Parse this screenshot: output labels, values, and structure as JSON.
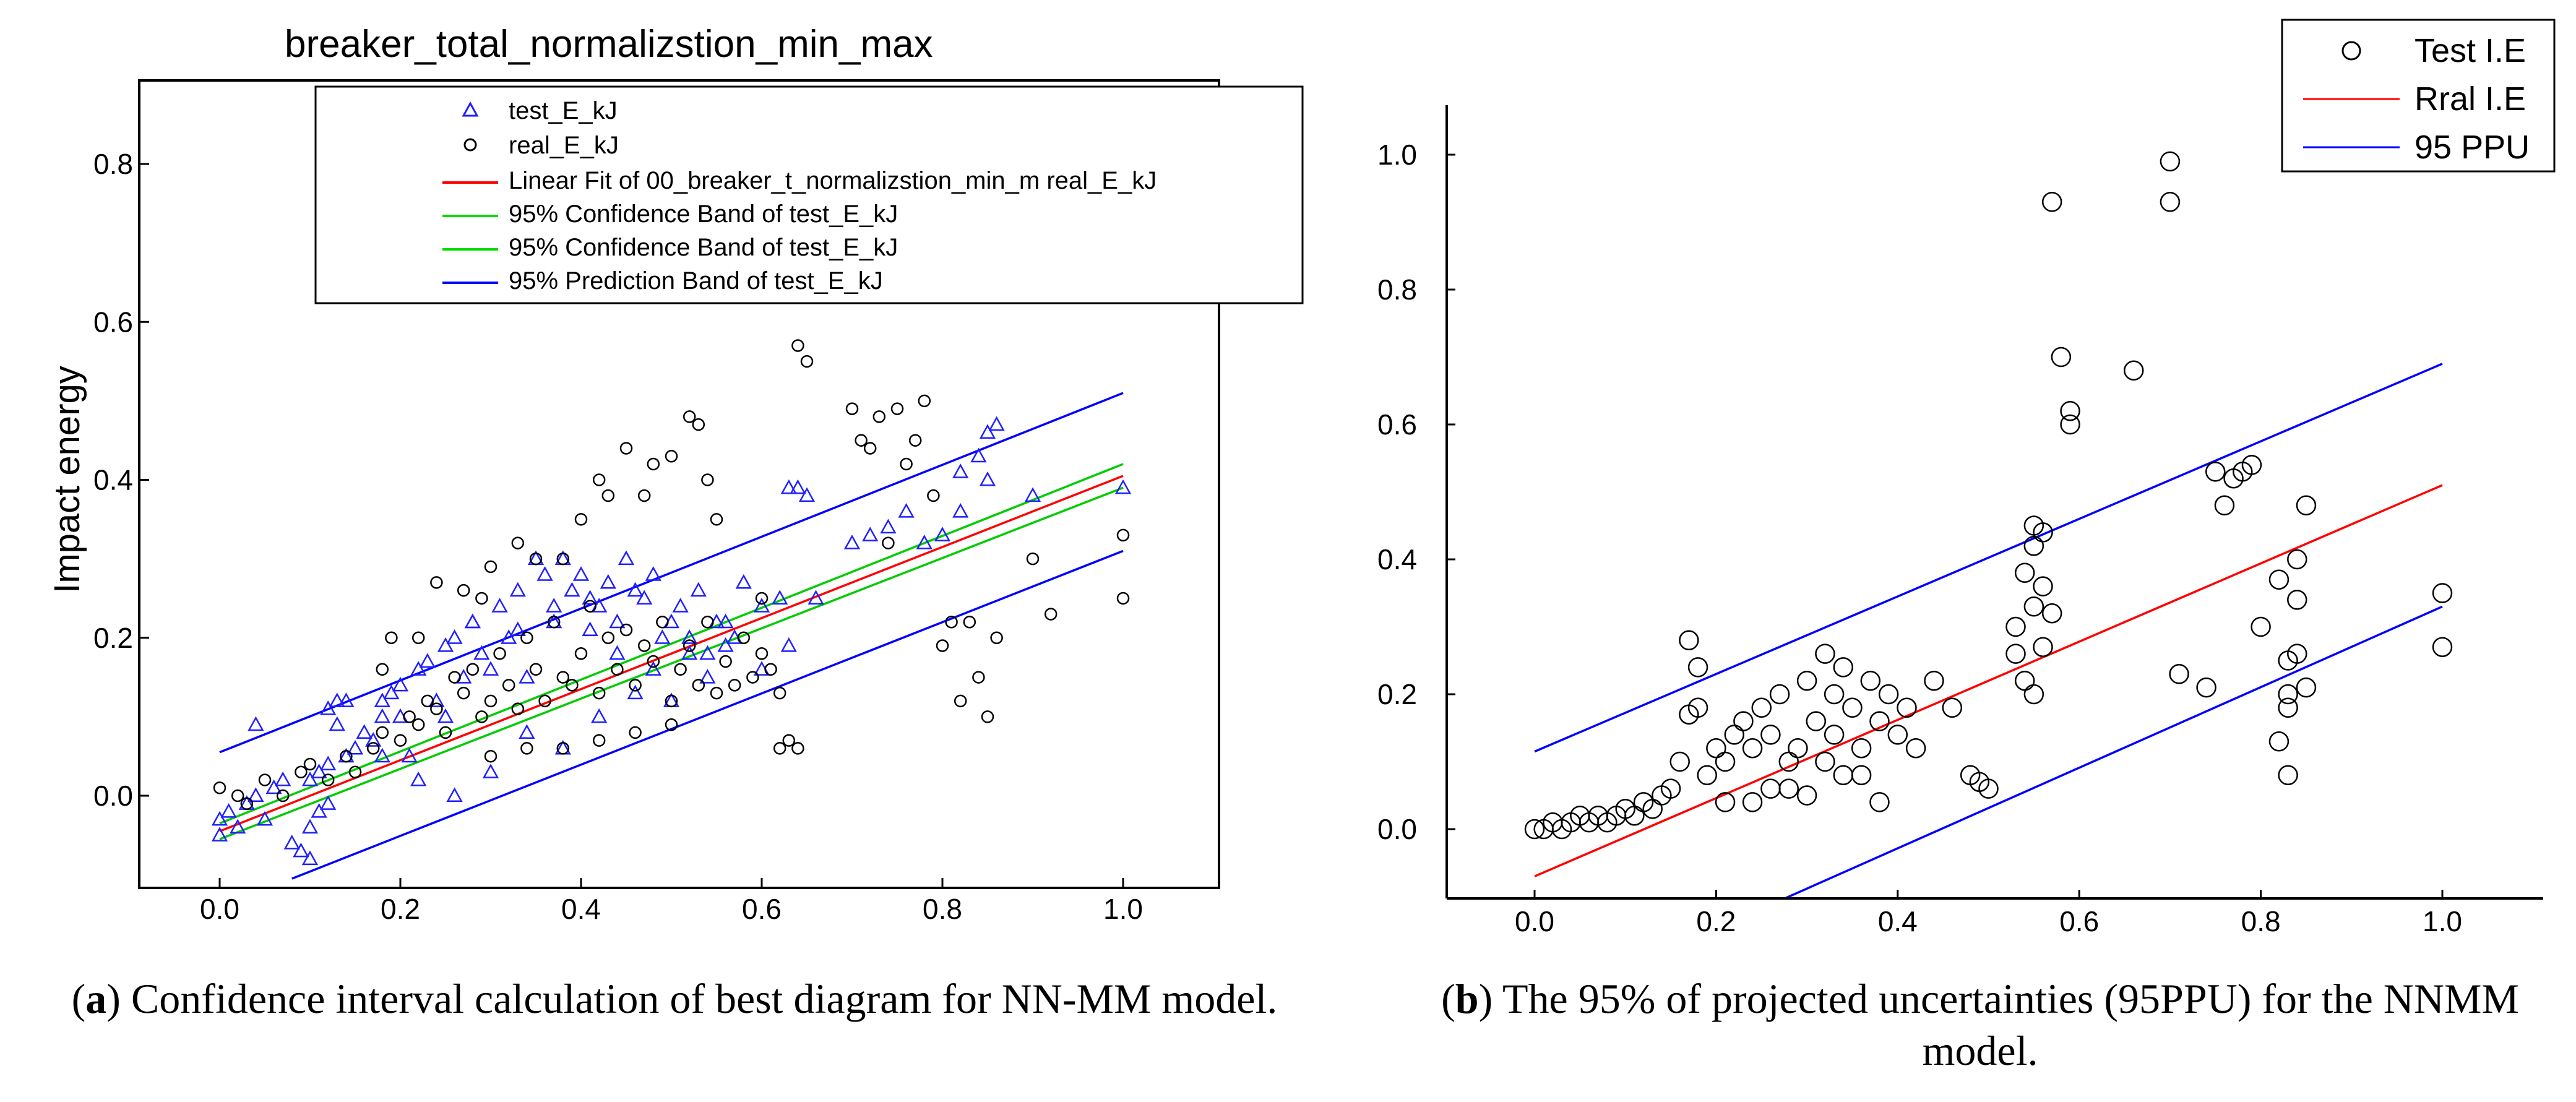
{
  "chart_data": [
    {
      "id": "a",
      "type": "scatter",
      "title": "breaker_total_normalizstion_min_max",
      "xlabel": "",
      "ylabel": "Impact energy",
      "xlim": [
        -0.1,
        1.1
      ],
      "ylim": [
        -0.1,
        0.9
      ],
      "x_ticks": [
        "0.0",
        "0.2",
        "0.4",
        "0.6",
        "0.8",
        "1.0"
      ],
      "y_ticks": [
        "0.0",
        "0.2",
        "0.4",
        "0.6",
        "0.8"
      ],
      "legend_position": "top-center",
      "legend": [
        {
          "label": "test_E_kJ",
          "marker": "triangle",
          "color": "#1f1fff"
        },
        {
          "label": "real_E_kJ",
          "marker": "circle",
          "color": "#000000"
        },
        {
          "label": "Linear Fit of 00_breaker_t_normalizstion_min_m real_E_kJ",
          "marker": "line",
          "color": "#ff0000"
        },
        {
          "label": "95% Confidence Band of test_E_kJ",
          "marker": "line",
          "color": "#00dd00"
        },
        {
          "label": "95% Confidence Band of test_E_kJ",
          "marker": "line",
          "color": "#00dd00"
        },
        {
          "label": "95% Prediction Band of test_E_kJ",
          "marker": "line",
          "color": "#0000ff"
        }
      ],
      "lines": [
        {
          "name": "Linear Fit",
          "color": "#ff0000",
          "x": [
            0.0,
            1.0
          ],
          "y": [
            -0.045,
            0.405
          ]
        },
        {
          "name": "95% Confidence Band upper",
          "color": "#00cc00",
          "x": [
            0.0,
            1.0
          ],
          "y": [
            -0.035,
            0.42
          ]
        },
        {
          "name": "95% Confidence Band lower",
          "color": "#00cc00",
          "x": [
            0.0,
            1.0
          ],
          "y": [
            -0.055,
            0.39
          ]
        },
        {
          "name": "95% Prediction Band upper",
          "color": "#0000ff",
          "x": [
            0.0,
            1.0
          ],
          "y": [
            0.055,
            0.51
          ]
        },
        {
          "name": "95% Prediction Band lower",
          "color": "#0000ff",
          "x": [
            0.08,
            1.0
          ],
          "y": [
            -0.105,
            0.31
          ]
        }
      ],
      "series": [
        {
          "name": "test_E_kJ",
          "marker": "triangle",
          "color": "#1f1fff",
          "x": [
            0.0,
            0.0,
            0.01,
            0.02,
            0.03,
            0.04,
            0.05,
            0.06,
            0.07,
            0.08,
            0.09,
            0.1,
            0.1,
            0.11,
            0.12,
            0.12,
            0.13,
            0.14,
            0.15,
            0.16,
            0.17,
            0.18,
            0.18,
            0.19,
            0.2,
            0.21,
            0.22,
            0.23,
            0.24,
            0.25,
            0.26,
            0.27,
            0.28,
            0.29,
            0.3,
            0.31,
            0.32,
            0.33,
            0.34,
            0.35,
            0.36,
            0.37,
            0.38,
            0.39,
            0.4,
            0.41,
            0.42,
            0.43,
            0.44,
            0.45,
            0.46,
            0.47,
            0.48,
            0.49,
            0.5,
            0.51,
            0.52,
            0.53,
            0.54,
            0.55,
            0.56,
            0.57,
            0.58,
            0.6,
            0.62,
            0.63,
            0.64,
            0.65,
            0.66,
            0.7,
            0.72,
            0.74,
            0.76,
            0.78,
            0.8,
            0.82,
            0.84,
            0.85,
            0.86,
            0.9,
            1.0,
            0.04,
            0.13,
            0.14,
            0.18,
            0.22,
            0.26,
            0.3,
            0.34,
            0.38,
            0.42,
            0.46,
            0.5,
            0.54,
            0.1,
            0.11,
            0.12,
            0.2,
            0.25,
            0.28,
            0.33,
            0.37,
            0.41,
            0.44,
            0.48,
            0.52,
            0.56,
            0.6,
            0.63,
            0.85,
            0.82
          ],
          "y": [
            -0.05,
            -0.03,
            -0.02,
            -0.04,
            -0.01,
            0.0,
            -0.03,
            0.01,
            0.02,
            -0.06,
            -0.07,
            -0.08,
            0.02,
            0.03,
            0.04,
            0.11,
            0.12,
            0.05,
            0.06,
            0.08,
            0.07,
            0.1,
            0.12,
            0.13,
            0.14,
            0.05,
            0.16,
            0.17,
            0.12,
            0.1,
            0.2,
            0.15,
            0.22,
            0.18,
            0.16,
            0.24,
            0.2,
            0.21,
            0.15,
            0.3,
            0.28,
            0.22,
            0.3,
            0.26,
            0.28,
            0.25,
            0.24,
            0.27,
            0.22,
            0.3,
            0.26,
            0.25,
            0.28,
            0.2,
            0.22,
            0.24,
            0.18,
            0.26,
            0.15,
            0.22,
            0.19,
            0.2,
            0.27,
            0.24,
            0.25,
            0.19,
            0.39,
            0.38,
            0.25,
            0.32,
            0.33,
            0.34,
            0.36,
            0.32,
            0.33,
            0.41,
            0.43,
            0.46,
            0.47,
            0.38,
            0.39,
            0.09,
            0.09,
            0.12,
            0.05,
            0.02,
            0.0,
            0.03,
            0.08,
            0.06,
            0.1,
            0.13,
            0.12,
            0.18,
            -0.04,
            -0.02,
            -0.01,
            0.1,
            0.19,
            0.22,
            0.26,
            0.24,
            0.21,
            0.18,
            0.16,
            0.2,
            0.22,
            0.16,
            0.39,
            0.4,
            0.36
          ]
        },
        {
          "name": "real_E_kJ",
          "marker": "circle",
          "color": "#000000",
          "x": [
            0.0,
            0.02,
            0.03,
            0.05,
            0.07,
            0.09,
            0.1,
            0.12,
            0.14,
            0.15,
            0.17,
            0.18,
            0.2,
            0.21,
            0.22,
            0.23,
            0.24,
            0.25,
            0.26,
            0.27,
            0.28,
            0.29,
            0.3,
            0.31,
            0.32,
            0.33,
            0.34,
            0.35,
            0.36,
            0.37,
            0.38,
            0.39,
            0.4,
            0.41,
            0.42,
            0.43,
            0.44,
            0.45,
            0.46,
            0.47,
            0.48,
            0.49,
            0.5,
            0.51,
            0.52,
            0.53,
            0.54,
            0.55,
            0.56,
            0.57,
            0.58,
            0.59,
            0.6,
            0.61,
            0.62,
            0.63,
            0.64,
            0.65,
            0.7,
            0.71,
            0.72,
            0.73,
            0.74,
            0.75,
            0.76,
            0.77,
            0.78,
            0.79,
            0.8,
            0.81,
            0.82,
            0.83,
            0.84,
            0.85,
            0.86,
            0.9,
            0.92,
            1.0,
            1.0,
            0.6,
            0.62,
            0.64,
            0.52,
            0.53,
            0.54,
            0.47,
            0.48,
            0.42,
            0.43,
            0.38,
            0.33,
            0.29,
            0.24,
            0.22,
            0.27,
            0.3,
            0.35,
            0.4,
            0.45,
            0.5,
            0.55,
            0.3,
            0.34,
            0.38,
            0.42,
            0.46,
            0.5,
            0.18,
            0.19
          ],
          "y": [
            0.01,
            0.0,
            -0.01,
            0.02,
            0.0,
            0.03,
            0.04,
            0.02,
            0.05,
            0.03,
            0.06,
            0.08,
            0.07,
            0.1,
            0.09,
            0.12,
            0.11,
            0.08,
            0.15,
            0.13,
            0.16,
            0.1,
            0.12,
            0.18,
            0.14,
            0.11,
            0.2,
            0.16,
            0.12,
            0.22,
            0.15,
            0.14,
            0.18,
            0.24,
            0.13,
            0.2,
            0.16,
            0.21,
            0.14,
            0.19,
            0.17,
            0.22,
            0.12,
            0.16,
            0.19,
            0.14,
            0.22,
            0.13,
            0.17,
            0.14,
            0.2,
            0.15,
            0.18,
            0.16,
            0.13,
            0.07,
            0.57,
            0.55,
            0.49,
            0.45,
            0.44,
            0.48,
            0.32,
            0.49,
            0.42,
            0.45,
            0.5,
            0.38,
            0.19,
            0.22,
            0.12,
            0.22,
            0.15,
            0.1,
            0.2,
            0.3,
            0.23,
            0.33,
            0.25,
            0.25,
            0.06,
            0.06,
            0.48,
            0.47,
            0.4,
            0.38,
            0.42,
            0.4,
            0.38,
            0.3,
            0.32,
            0.25,
            0.27,
            0.2,
            0.26,
            0.29,
            0.3,
            0.35,
            0.44,
            0.43,
            0.35,
            0.05,
            0.06,
            0.06,
            0.07,
            0.08,
            0.09,
            0.16,
            0.2
          ]
        }
      ]
    },
    {
      "id": "b",
      "type": "scatter",
      "title": "",
      "xlabel": "",
      "ylabel": "",
      "xlim": [
        -0.1,
        1.1
      ],
      "ylim": [
        -0.13,
        1.1
      ],
      "x_ticks": [
        "0.0",
        "0.2",
        "0.4",
        "0.6",
        "0.8",
        "1.0"
      ],
      "y_ticks": [
        "0.0",
        "0.2",
        "0.4",
        "0.6",
        "0.8",
        "1.0"
      ],
      "legend_position": "top-right",
      "legend": [
        {
          "label": "Test I.E",
          "marker": "circle",
          "color": "#000000"
        },
        {
          "label": "Rral I.E",
          "marker": "line",
          "color": "#ff0000"
        },
        {
          "label": "95 PPU",
          "marker": "line",
          "color": "#0000ff"
        }
      ],
      "lines": [
        {
          "name": "Rral I.E",
          "color": "#ff0000",
          "x": [
            0.0,
            1.0
          ],
          "y": [
            -0.07,
            0.51
          ]
        },
        {
          "name": "95 PPU upper",
          "color": "#0000ff",
          "x": [
            0.0,
            1.0
          ],
          "y": [
            0.115,
            0.69
          ]
        },
        {
          "name": "95 PPU lower",
          "color": "#0000ff",
          "x": [
            0.23,
            1.0
          ],
          "y": [
            -0.13,
            0.33
          ]
        }
      ],
      "series": [
        {
          "name": "Test I.E",
          "marker": "circle",
          "color": "#000000",
          "x": [
            0.0,
            0.01,
            0.02,
            0.03,
            0.04,
            0.05,
            0.06,
            0.07,
            0.08,
            0.09,
            0.1,
            0.11,
            0.12,
            0.13,
            0.14,
            0.15,
            0.16,
            0.17,
            0.17,
            0.18,
            0.18,
            0.19,
            0.2,
            0.21,
            0.22,
            0.23,
            0.24,
            0.25,
            0.26,
            0.27,
            0.28,
            0.29,
            0.3,
            0.31,
            0.32,
            0.33,
            0.34,
            0.35,
            0.36,
            0.37,
            0.38,
            0.39,
            0.4,
            0.41,
            0.42,
            0.44,
            0.46,
            0.48,
            0.49,
            0.5,
            0.53,
            0.54,
            0.55,
            0.55,
            0.56,
            0.57,
            0.58,
            0.59,
            0.59,
            0.66,
            0.7,
            0.7,
            0.71,
            0.74,
            0.75,
            0.76,
            0.77,
            0.78,
            0.79,
            0.8,
            0.82,
            0.83,
            0.83,
            0.84,
            0.84,
            0.85,
            1.0,
            1.0,
            0.82,
            0.83,
            0.83,
            0.85,
            0.84,
            0.53,
            0.54,
            0.55,
            0.56,
            0.57,
            0.56,
            0.55,
            0.32,
            0.34,
            0.3,
            0.28,
            0.33,
            0.36,
            0.38,
            0.26,
            0.24,
            0.21
          ],
          "y": [
            0.0,
            0.0,
            0.01,
            0.0,
            0.01,
            0.02,
            0.01,
            0.02,
            0.01,
            0.02,
            0.03,
            0.02,
            0.04,
            0.03,
            0.05,
            0.06,
            0.1,
            0.28,
            0.17,
            0.18,
            0.24,
            0.08,
            0.12,
            0.1,
            0.14,
            0.16,
            0.12,
            0.18,
            0.14,
            0.2,
            0.1,
            0.12,
            0.22,
            0.16,
            0.26,
            0.14,
            0.24,
            0.18,
            0.12,
            0.22,
            0.16,
            0.2,
            0.14,
            0.18,
            0.12,
            0.22,
            0.18,
            0.08,
            0.07,
            0.06,
            0.3,
            0.38,
            0.42,
            0.45,
            0.44,
            0.93,
            0.7,
            0.6,
            0.62,
            0.68,
            0.99,
            0.93,
            0.23,
            0.21,
            0.53,
            0.48,
            0.52,
            0.53,
            0.54,
            0.3,
            0.37,
            0.25,
            0.2,
            0.26,
            0.34,
            0.21,
            0.35,
            0.27,
            0.13,
            0.18,
            0.08,
            0.48,
            0.4,
            0.26,
            0.22,
            0.2,
            0.27,
            0.32,
            0.36,
            0.33,
            0.1,
            0.08,
            0.05,
            0.06,
            0.2,
            0.08,
            0.04,
            0.06,
            0.04,
            0.04
          ]
        }
      ]
    }
  ],
  "captions": {
    "a": {
      "letter": "a",
      "text": " Confidence interval calculation of best diagram for NN-MM model."
    },
    "b": {
      "letter": "b",
      "text": " The 95% of projected uncertainties (95PPU) for the NNMM model."
    }
  }
}
